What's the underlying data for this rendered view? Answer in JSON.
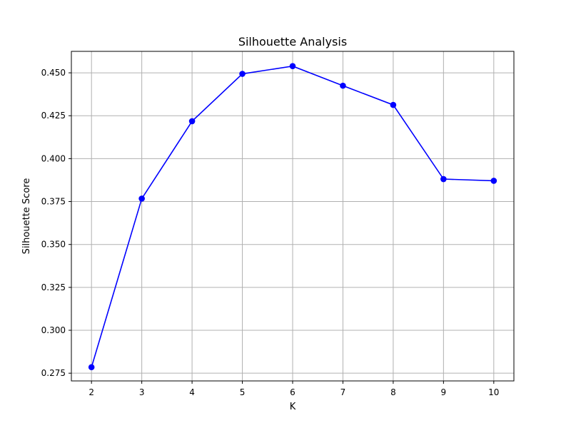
{
  "chart_data": {
    "type": "line",
    "title": "Silhouette Analysis",
    "xlabel": "K",
    "ylabel": "Silhouette Score",
    "x": [
      2,
      3,
      4,
      5,
      6,
      7,
      8,
      9,
      10
    ],
    "series": [
      {
        "values": [
          0.2785,
          0.3767,
          0.4218,
          0.4494,
          0.4539,
          0.4425,
          0.4313,
          0.3881,
          0.3871
        ]
      }
    ],
    "xlim": [
      1.6,
      10.4
    ],
    "ylim": [
      0.2705,
      0.4625
    ],
    "xticks": [
      2,
      3,
      4,
      5,
      6,
      7,
      8,
      9,
      10
    ],
    "xtick_labels": [
      "2",
      "3",
      "4",
      "5",
      "6",
      "7",
      "8",
      "9",
      "10"
    ],
    "yticks": [
      0.275,
      0.3,
      0.325,
      0.35,
      0.375,
      0.4,
      0.425,
      0.45
    ],
    "ytick_labels": [
      "0.275",
      "0.300",
      "0.325",
      "0.350",
      "0.375",
      "0.400",
      "0.425",
      "0.450"
    ],
    "grid": true,
    "markers": true,
    "colors": {
      "line": "#0000ff",
      "grid": "#b0b0b0",
      "axes": "#000000"
    }
  }
}
